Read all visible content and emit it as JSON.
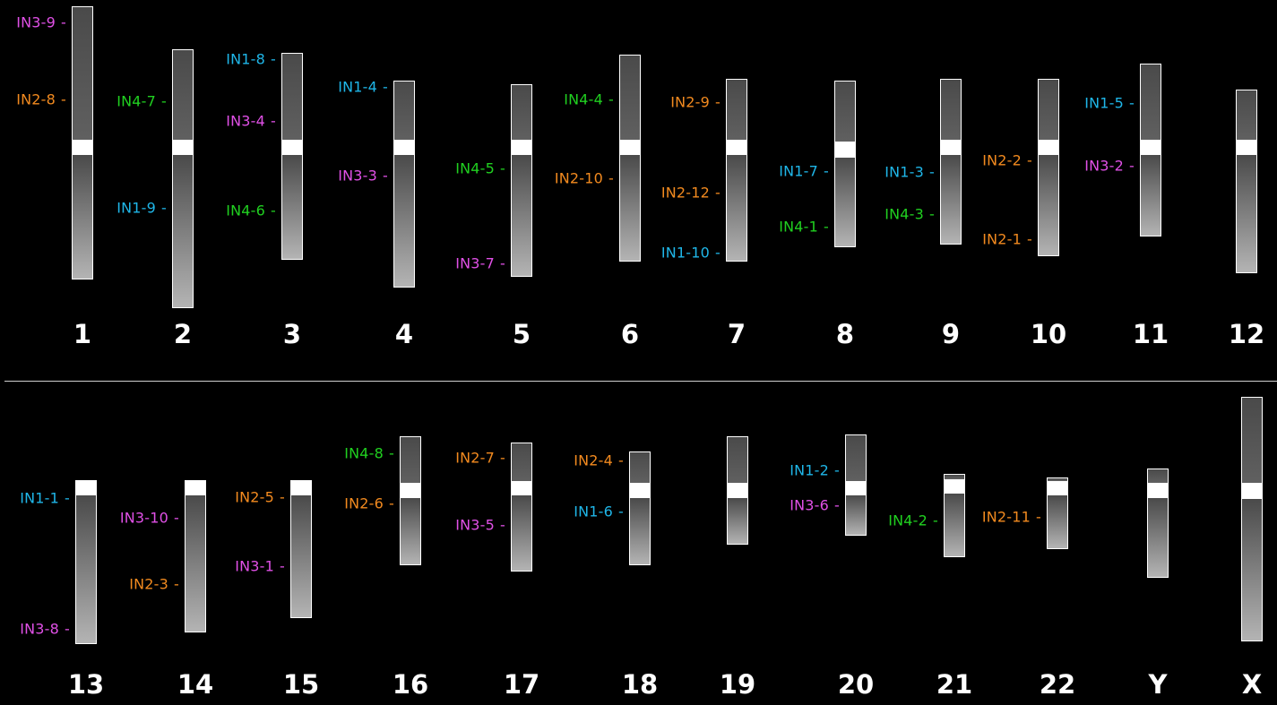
{
  "colors": {
    "IN1": "#1fb6e8",
    "IN2": "#f28a1f",
    "IN3": "#e050e6",
    "IN4": "#20d020"
  },
  "rows": [
    {
      "chromosomes": [
        {
          "number": "1",
          "markers": [
            {
              "label": "IN3-9",
              "series": "IN3"
            },
            {
              "label": "IN2-8",
              "series": "IN2"
            }
          ]
        },
        {
          "number": "2",
          "markers": [
            {
              "label": "IN4-7",
              "series": "IN4"
            },
            {
              "label": "IN1-9",
              "series": "IN1"
            }
          ]
        },
        {
          "number": "3",
          "markers": [
            {
              "label": "IN1-8",
              "series": "IN1"
            },
            {
              "label": "IN3-4",
              "series": "IN3"
            },
            {
              "label": "IN4-6",
              "series": "IN4"
            }
          ]
        },
        {
          "number": "4",
          "markers": [
            {
              "label": "IN1-4",
              "series": "IN1"
            },
            {
              "label": "IN3-3",
              "series": "IN3"
            }
          ]
        },
        {
          "number": "5",
          "markers": [
            {
              "label": "IN4-5",
              "series": "IN4"
            },
            {
              "label": "IN3-7",
              "series": "IN3"
            }
          ]
        },
        {
          "number": "6",
          "markers": [
            {
              "label": "IN4-4",
              "series": "IN4"
            },
            {
              "label": "IN2-10",
              "series": "IN2"
            }
          ]
        },
        {
          "number": "7",
          "markers": [
            {
              "label": "IN2-9",
              "series": "IN2"
            },
            {
              "label": "IN2-12",
              "series": "IN2"
            },
            {
              "label": "IN1-10",
              "series": "IN1"
            }
          ]
        },
        {
          "number": "8",
          "markers": [
            {
              "label": "IN1-7",
              "series": "IN1"
            },
            {
              "label": "IN4-1",
              "series": "IN4"
            }
          ]
        },
        {
          "number": "9",
          "markers": [
            {
              "label": "IN1-3",
              "series": "IN1"
            },
            {
              "label": "IN4-3",
              "series": "IN4"
            }
          ]
        },
        {
          "number": "10",
          "markers": [
            {
              "label": "IN2-2",
              "series": "IN2"
            },
            {
              "label": "IN2-1",
              "series": "IN2"
            }
          ]
        },
        {
          "number": "11",
          "markers": [
            {
              "label": "IN1-5",
              "series": "IN1"
            },
            {
              "label": "IN3-2",
              "series": "IN3"
            }
          ]
        },
        {
          "number": "12",
          "markers": []
        }
      ]
    },
    {
      "chromosomes": [
        {
          "number": "13",
          "markers": [
            {
              "label": "IN1-1",
              "series": "IN1"
            },
            {
              "label": "IN3-8",
              "series": "IN3"
            }
          ]
        },
        {
          "number": "14",
          "markers": [
            {
              "label": "IN3-10",
              "series": "IN3"
            },
            {
              "label": "IN2-3",
              "series": "IN2"
            }
          ]
        },
        {
          "number": "15",
          "markers": [
            {
              "label": "IN2-5",
              "series": "IN2"
            },
            {
              "label": "IN3-1",
              "series": "IN3"
            }
          ]
        },
        {
          "number": "16",
          "markers": [
            {
              "label": "IN4-8",
              "series": "IN4"
            },
            {
              "label": "IN2-6",
              "series": "IN2"
            }
          ]
        },
        {
          "number": "17",
          "markers": [
            {
              "label": "IN2-7",
              "series": "IN2"
            },
            {
              "label": "IN3-5",
              "series": "IN3"
            }
          ]
        },
        {
          "number": "18",
          "markers": [
            {
              "label": "IN2-4",
              "series": "IN2"
            },
            {
              "label": "IN1-6",
              "series": "IN1"
            }
          ]
        },
        {
          "number": "19",
          "markers": []
        },
        {
          "number": "20",
          "markers": [
            {
              "label": "IN1-2",
              "series": "IN1"
            },
            {
              "label": "IN3-6",
              "series": "IN3"
            }
          ]
        },
        {
          "number": "21",
          "markers": [
            {
              "label": "IN4-2",
              "series": "IN4"
            }
          ]
        },
        {
          "number": "22",
          "markers": [
            {
              "label": "IN2-11",
              "series": "IN2"
            }
          ]
        },
        {
          "number": "Y",
          "markers": []
        },
        {
          "number": "X",
          "markers": []
        }
      ]
    }
  ]
}
